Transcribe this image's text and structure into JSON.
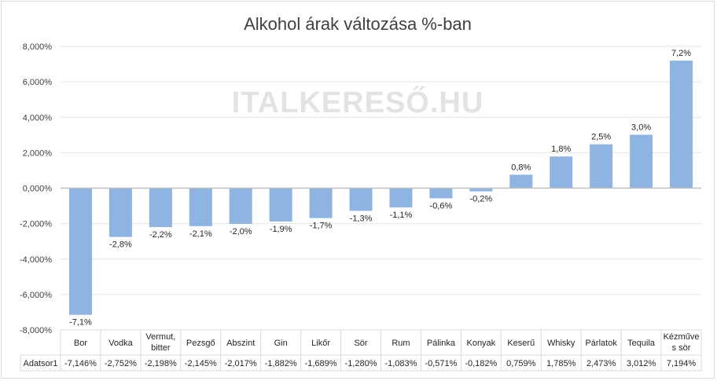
{
  "chart_data": {
    "type": "bar",
    "title": "Alkohol árak változása %-ban",
    "watermark": "ITALKERESŐ.HU",
    "categories": [
      "Bor",
      "Vodka",
      "Vermut, bitter",
      "Pezsgő",
      "Abszint",
      "Gin",
      "Likőr",
      "Sör",
      "Rum",
      "Pálinka",
      "Konyak",
      "Keserű",
      "Whisky",
      "Párlatok",
      "Tequila",
      "Kézműves sör"
    ],
    "category_lines": [
      [
        "Bor"
      ],
      [
        "Vodka"
      ],
      [
        "Vermut,",
        "bitter"
      ],
      [
        "Pezsgő"
      ],
      [
        "Abszint"
      ],
      [
        "Gin"
      ],
      [
        "Likőr"
      ],
      [
        "Sör"
      ],
      [
        "Rum"
      ],
      [
        "Pálinka"
      ],
      [
        "Konyak"
      ],
      [
        "Keserű"
      ],
      [
        "Whisky"
      ],
      [
        "Párlatok"
      ],
      [
        "Tequila"
      ],
      [
        "Kézműve",
        "s sör"
      ]
    ],
    "series": [
      {
        "name": "Adatsor1",
        "values": [
          -7.146,
          -2.752,
          -2.198,
          -2.145,
          -2.017,
          -1.882,
          -1.689,
          -1.28,
          -1.083,
          -0.571,
          -0.182,
          0.759,
          1.785,
          2.473,
          3.012,
          7.194
        ],
        "data_labels": [
          "-7,1%",
          "-2,8%",
          "-2,2%",
          "-2,1%",
          "-2,0%",
          "-1,9%",
          "-1,7%",
          "-1,3%",
          "-1,1%",
          "-0,6%",
          "-0,2%",
          "0,8%",
          "1,8%",
          "2,5%",
          "3,0%",
          "7,2%"
        ],
        "table_values": [
          "-7,146%",
          "-2,752%",
          "-2,198%",
          "-2,145%",
          "-2,017%",
          "-1,882%",
          "-1,689%",
          "-1,280%",
          "-1,083%",
          "-0,571%",
          "-0,182%",
          "0,759%",
          "1,785%",
          "2,473%",
          "3,012%",
          "7,194%"
        ]
      }
    ],
    "ylim": [
      -8,
      8
    ],
    "yticks": [
      8,
      6,
      4,
      2,
      0,
      -2,
      -4,
      -6,
      -8
    ],
    "ytick_labels": [
      "8,000%",
      "6,000%",
      "4,000%",
      "2,000%",
      "0,000%",
      "-2,000%",
      "-4,000%",
      "-6,000%",
      "-8,000%"
    ],
    "grid": true,
    "legend": "data-table",
    "bar_color": "#8db4e2"
  }
}
